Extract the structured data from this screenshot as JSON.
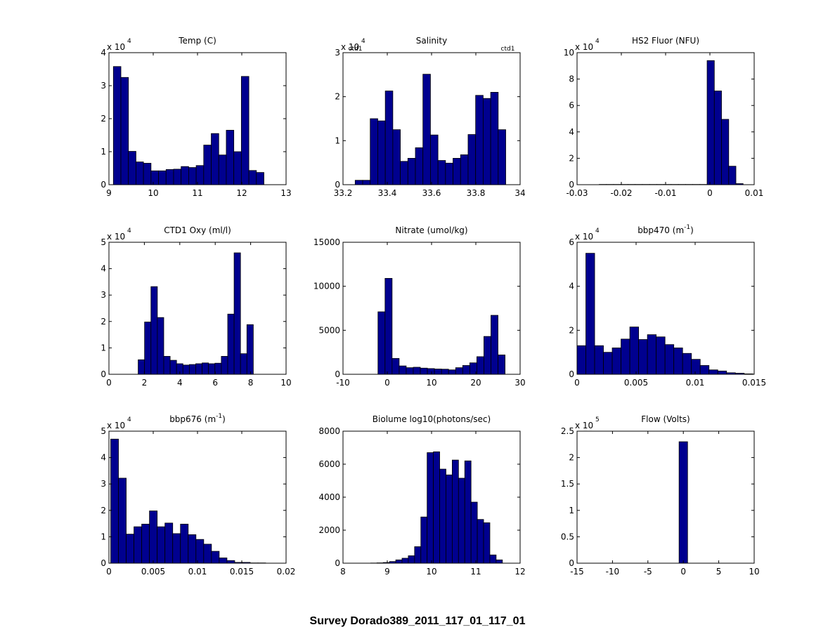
{
  "figure": {
    "suptitle": "Survey Dorado389_2011_117_01_117_01"
  },
  "colors": {
    "bar_fill": "#00008f",
    "bar_edge": "#000000",
    "axis": "#000000"
  },
  "chart_data": [
    {
      "type": "bar",
      "title": "Temp (C)",
      "title_sup": "",
      "xlim": [
        9,
        13
      ],
      "xticks": [
        9,
        10,
        11,
        12,
        13
      ],
      "ylim": [
        0,
        4
      ],
      "yticks": [
        0,
        1,
        2,
        3,
        4
      ],
      "y_exponent": "4",
      "bin_edges": [
        9.1,
        12.5
      ],
      "values": [
        3.58,
        3.25,
        1.01,
        0.69,
        0.65,
        0.42,
        0.42,
        0.46,
        0.47,
        0.55,
        0.52,
        0.58,
        1.2,
        1.55,
        0.9,
        1.65,
        1.0,
        3.28,
        0.43,
        0.37
      ],
      "annotations": []
    },
    {
      "type": "bar",
      "title": "Salinity",
      "title_sup": "",
      "xlim": [
        33.2,
        34
      ],
      "xticks": [
        33.2,
        33.4,
        33.6,
        33.8,
        34
      ],
      "ylim": [
        0,
        3
      ],
      "yticks": [
        0,
        1,
        2,
        3
      ],
      "y_exponent": "4",
      "bin_edges": [
        33.255,
        33.935
      ],
      "values": [
        0.1,
        0.1,
        1.5,
        1.45,
        2.13,
        1.25,
        0.53,
        0.6,
        0.84,
        2.51,
        1.13,
        0.55,
        0.49,
        0.6,
        0.68,
        1.14,
        2.03,
        1.96,
        2.1,
        1.25
      ],
      "annotations": [
        {
          "text": "ctd1",
          "xfrac": 0.03,
          "anchor": "start"
        },
        {
          "text": "ctd1",
          "xfrac": 0.97,
          "anchor": "end"
        }
      ]
    },
    {
      "type": "bar",
      "title": "HS2 Fluor (NFU)",
      "title_sup": "",
      "xlim": [
        -0.03,
        0.01
      ],
      "xticks": [
        -0.03,
        -0.02,
        -0.01,
        0,
        0.01
      ],
      "ylim": [
        0,
        10
      ],
      "yticks": [
        0,
        2,
        4,
        6,
        8,
        10
      ],
      "y_exponent": "4",
      "bin_edges": [
        -0.025,
        0.0075
      ],
      "values": [
        0.02,
        0.02,
        0.02,
        0.02,
        0.02,
        0.02,
        0.02,
        0.02,
        0.02,
        0.02,
        0.02,
        0.02,
        0.02,
        0.02,
        0.02,
        9.4,
        7.1,
        4.95,
        1.4,
        0.08
      ],
      "annotations": []
    },
    {
      "type": "bar",
      "title": "CTD1 Oxy (ml/l)",
      "title_sup": "",
      "xlim": [
        0,
        10
      ],
      "xticks": [
        0,
        2,
        4,
        6,
        8,
        10
      ],
      "ylim": [
        0,
        5
      ],
      "yticks": [
        0,
        1,
        2,
        3,
        4,
        5
      ],
      "y_exponent": "4",
      "bin_edges": [
        1.65,
        8.15
      ],
      "values": [
        0.55,
        1.98,
        3.32,
        2.15,
        0.68,
        0.53,
        0.4,
        0.35,
        0.37,
        0.4,
        0.43,
        0.4,
        0.42,
        0.68,
        2.28,
        4.6,
        0.78,
        1.88
      ],
      "annotations": []
    },
    {
      "type": "bar",
      "title": "Nitrate (umol/kg)",
      "title_sup": "",
      "xlim": [
        -10,
        30
      ],
      "xticks": [
        -10,
        0,
        10,
        20,
        30
      ],
      "ylim": [
        0,
        15000
      ],
      "yticks": [
        0,
        5000,
        10000,
        15000
      ],
      "y_exponent": "",
      "bin_edges": [
        -2.1,
        26.6
      ],
      "values": [
        7100,
        10900,
        1800,
        950,
        750,
        800,
        700,
        650,
        600,
        580,
        500,
        750,
        1000,
        1300,
        2000,
        4300,
        6700,
        2200
      ],
      "annotations": []
    },
    {
      "type": "bar",
      "title": "bbp470 (m",
      "title_sup": "-1",
      "xlim": [
        0,
        0.015
      ],
      "xticks": [
        0,
        0.005,
        0.01,
        0.015
      ],
      "ylim": [
        0,
        6
      ],
      "yticks": [
        0,
        2,
        4,
        6
      ],
      "y_exponent": "4",
      "bin_edges": [
        0,
        0.0149
      ],
      "values": [
        1.3,
        5.5,
        1.3,
        1.0,
        1.2,
        1.6,
        2.15,
        1.58,
        1.8,
        1.7,
        1.35,
        1.2,
        0.95,
        0.68,
        0.4,
        0.2,
        0.15,
        0.07,
        0.05,
        0.02
      ],
      "annotations": []
    },
    {
      "type": "bar",
      "title": "bbp676 (m",
      "title_sup": "-1",
      "xlim": [
        0,
        0.02
      ],
      "xticks": [
        0,
        0.005,
        0.01,
        0.015,
        0.02
      ],
      "ylim": [
        0,
        5
      ],
      "yticks": [
        0,
        1,
        2,
        3,
        4,
        5
      ],
      "y_exponent": "4",
      "bin_edges": [
        0.0002,
        0.0177
      ],
      "values": [
        4.7,
        3.22,
        1.1,
        1.38,
        1.48,
        1.98,
        1.38,
        1.52,
        1.12,
        1.48,
        1.08,
        0.9,
        0.72,
        0.45,
        0.2,
        0.1,
        0.03,
        0.03,
        0.01,
        0.01
      ],
      "annotations": []
    },
    {
      "type": "bar",
      "title": "Biolume log10(photons/sec)",
      "title_sup": "",
      "xlim": [
        8,
        12
      ],
      "xticks": [
        8,
        9,
        10,
        11,
        12
      ],
      "ylim": [
        0,
        8000
      ],
      "yticks": [
        0,
        2000,
        4000,
        6000,
        8000
      ],
      "y_exponent": "",
      "bin_edges": [
        8.2,
        11.6
      ],
      "values": [
        0,
        0,
        0,
        10,
        20,
        40,
        100,
        200,
        300,
        450,
        1000,
        2800,
        6700,
        6750,
        5700,
        5350,
        6250,
        5150,
        6200,
        3700,
        2650,
        2450,
        500,
        200
      ],
      "annotations": []
    },
    {
      "type": "bar",
      "title": "Flow (Volts)",
      "title_sup": "",
      "xlim": [
        -15,
        10
      ],
      "xticks": [
        -15,
        -10,
        -5,
        0,
        5,
        10
      ],
      "ylim": [
        0,
        2.5
      ],
      "yticks": [
        0,
        0.5,
        1,
        1.5,
        2,
        2.5
      ],
      "y_exponent": "5",
      "bin_edges": [
        -0.6,
        0.6
      ],
      "values": [
        2.3
      ],
      "annotations": []
    }
  ]
}
